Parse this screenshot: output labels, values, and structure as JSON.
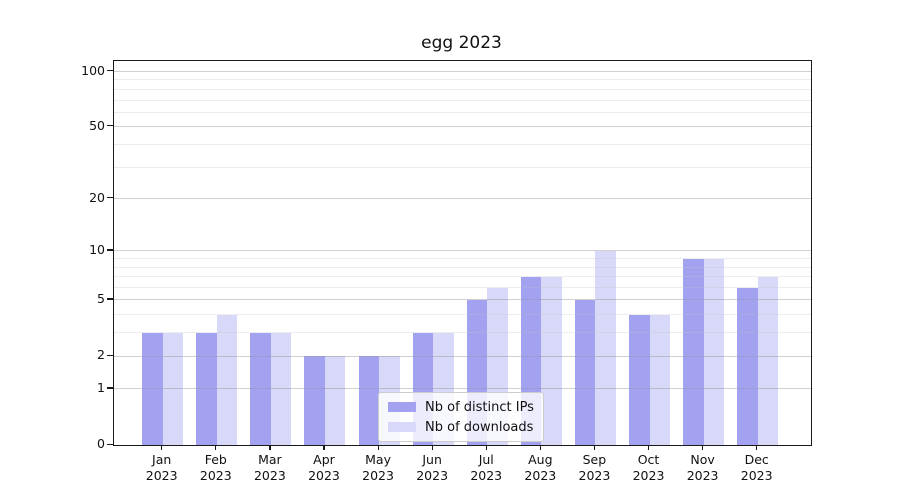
{
  "title": "egg 2023",
  "legend": [
    {
      "label": "Nb of distinct IPs",
      "color": "#a2a2f0"
    },
    {
      "label": "Nb of downloads",
      "color": "#d8d8f8"
    }
  ],
  "chart_data": {
    "type": "bar",
    "title": "egg 2023",
    "xlabel": "",
    "ylabel": "",
    "categories": [
      "Jan 2023",
      "Feb 2023",
      "Mar 2023",
      "Apr 2023",
      "May 2023",
      "Jun 2023",
      "Jul 2023",
      "Aug 2023",
      "Sep 2023",
      "Oct 2023",
      "Nov 2023",
      "Dec 2023"
    ],
    "series": [
      {
        "name": "Nb of distinct IPs",
        "color": "#a2a2f0",
        "values": [
          3,
          3,
          3,
          2,
          2,
          3,
          5,
          7,
          5,
          4,
          9,
          6
        ]
      },
      {
        "name": "Nb of downloads",
        "color": "#d8d8f8",
        "values": [
          3,
          4,
          3,
          2,
          2,
          3,
          6,
          7,
          10,
          4,
          9,
          7
        ]
      }
    ],
    "y_scale": "log1p",
    "ylim": [
      0,
      114
    ],
    "y_ticks": [
      0,
      1,
      2,
      5,
      10,
      20,
      50,
      100
    ],
    "y_tick_labels": [
      "0",
      "1",
      "2",
      "5",
      "10",
      "20",
      "50",
      "100"
    ],
    "y_minor_gridlines": [
      3,
      4,
      6,
      7,
      8,
      9,
      30,
      40,
      60,
      70,
      80,
      90
    ],
    "grid": true,
    "legend_position": "lower center",
    "background": "#ffffff",
    "spine_color": "#1a1a1a"
  }
}
